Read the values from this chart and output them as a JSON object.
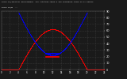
{
  "title_line1": "Solar PV/Inverter Performance  Sun Altitude Angle & Sun Incidence Angle on PV Panels",
  "title_line2": "Solar PV/W  ---",
  "bg_color": "#1a1a1a",
  "plot_bg_color": "#1a1a1a",
  "grid_color": "#555555",
  "blue_color": "#0000ff",
  "red_color": "#ff0000",
  "ylim": [
    0,
    90
  ],
  "xlim": [
    0,
    24
  ],
  "yticks": [
    0,
    10,
    20,
    30,
    40,
    50,
    60,
    70,
    80,
    90
  ],
  "xtick_labels": [
    "0",
    "2",
    "4",
    "6",
    "8",
    "10",
    "12",
    "14",
    "16",
    "18",
    "20",
    "22",
    "24"
  ],
  "xticks": [
    0,
    2,
    4,
    6,
    8,
    10,
    12,
    14,
    16,
    18,
    20,
    22,
    24
  ],
  "sun_rise": 4.0,
  "sun_set": 20.0,
  "sun_peak_alt": 62,
  "sun_inc_min": 22,
  "sun_inc_edge": 88
}
